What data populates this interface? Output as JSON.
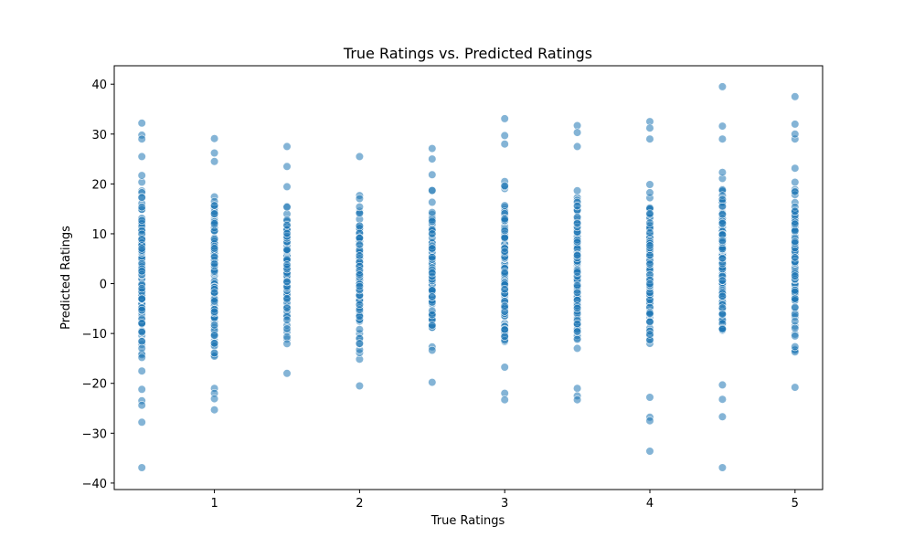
{
  "chart_data": {
    "type": "scatter",
    "title": "True Ratings vs. Predicted Ratings",
    "xlabel": "True Ratings",
    "ylabel": "Predicted Ratings",
    "xlim": [
      0.31,
      5.19
    ],
    "ylim": [
      -41.3,
      43.7
    ],
    "xticks": [
      1,
      2,
      3,
      4,
      5
    ],
    "yticks": [
      -40,
      -30,
      -20,
      -10,
      0,
      10,
      20,
      30,
      40
    ],
    "grid": false,
    "legend": "none",
    "point_color": "#1f77b4",
    "point_alpha": 0.55,
    "x_values": [
      0.5,
      1,
      1.5,
      2,
      2.5,
      3,
      3.5,
      4,
      4.5,
      5
    ],
    "groups": [
      {
        "x": 0.5,
        "range": [
          -21.2,
          25.5
        ],
        "outliers": [
          32.2,
          29.8,
          29.0,
          -23.5,
          -24.4,
          -27.8,
          -36.9
        ]
      },
      {
        "x": 1.0,
        "range": [
          -21.0,
          24.5
        ],
        "outliers": [
          29.1,
          26.2,
          -22.0,
          -23.1,
          -25.3
        ]
      },
      {
        "x": 1.5,
        "range": [
          -18.0,
          23.5
        ],
        "outliers": [
          27.5
        ]
      },
      {
        "x": 2.0,
        "range": [
          -20.5,
          25.5
        ],
        "outliers": []
      },
      {
        "x": 2.5,
        "range": [
          -19.8,
          25.0
        ],
        "outliers": [
          27.1
        ]
      },
      {
        "x": 3.0,
        "range": [
          -22.0,
          28.0
        ],
        "outliers": [
          33.1,
          29.7,
          -23.3
        ]
      },
      {
        "x": 3.5,
        "range": [
          -21.0,
          27.5
        ],
        "outliers": [
          31.7,
          30.3,
          -22.5,
          -23.3
        ]
      },
      {
        "x": 4.0,
        "range": [
          -22.8,
          29.0
        ],
        "outliers": [
          32.5,
          31.2,
          -26.8,
          -27.5,
          -33.6
        ]
      },
      {
        "x": 4.5,
        "range": [
          -20.3,
          29.0
        ],
        "outliers": [
          39.5,
          31.6,
          -23.2,
          -26.7,
          -36.9
        ]
      },
      {
        "x": 5.0,
        "range": [
          -20.8,
          29.0
        ],
        "outliers": [
          37.5,
          32.0,
          30.0
        ]
      }
    ]
  }
}
